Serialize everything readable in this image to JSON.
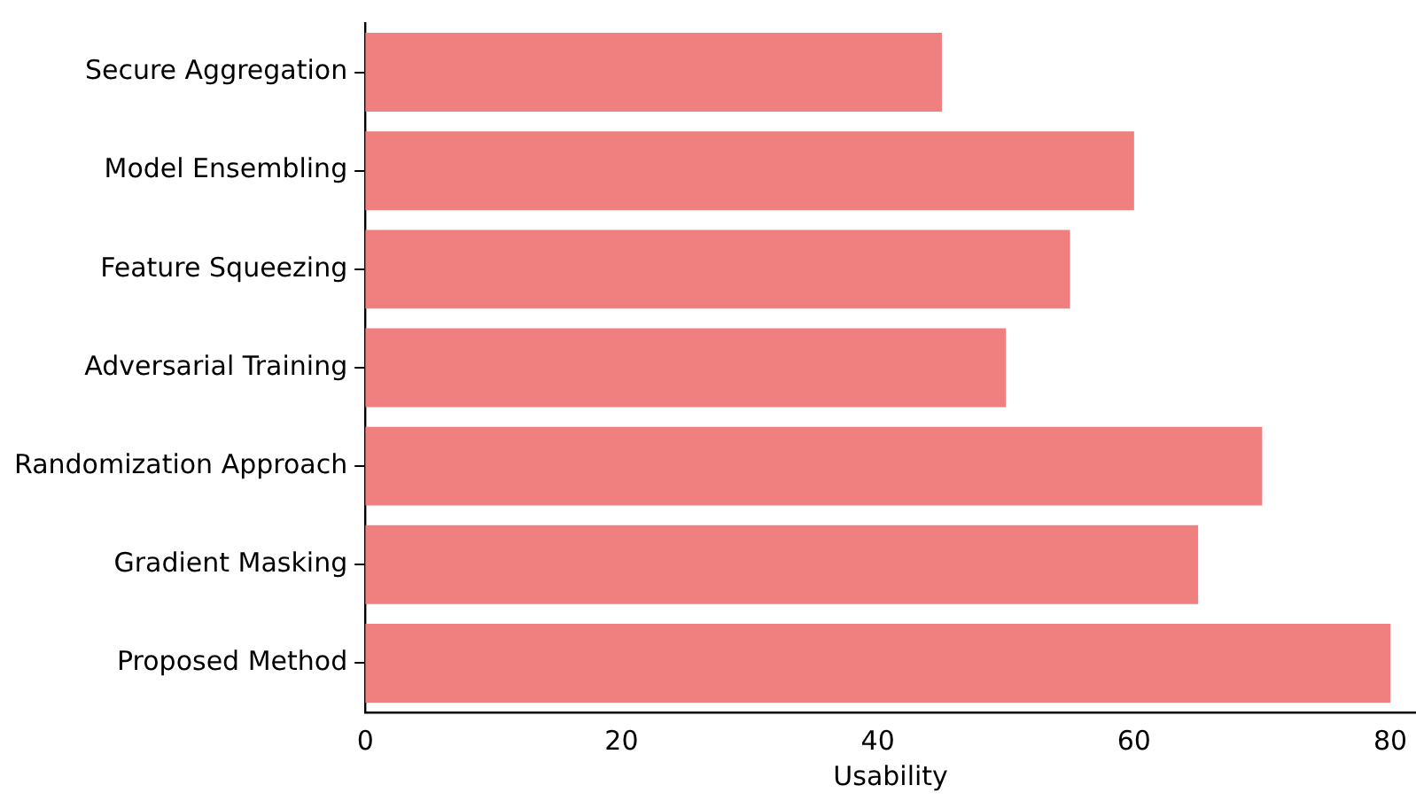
{
  "chart_data": {
    "type": "bar",
    "orientation": "horizontal",
    "xlabel": "Usability",
    "categories": [
      "Secure Aggregation",
      "Model Ensembling",
      "Feature Squeezing",
      "Adversarial Training",
      "Randomization Approach",
      "Gradient Masking",
      "Proposed Method"
    ],
    "values": [
      45,
      60,
      55,
      50,
      70,
      65,
      80
    ],
    "color": "#f08080",
    "xlim": [
      0,
      82
    ],
    "xticks": [
      0,
      20,
      40,
      60,
      80
    ],
    "grid": false,
    "legend": false
  }
}
